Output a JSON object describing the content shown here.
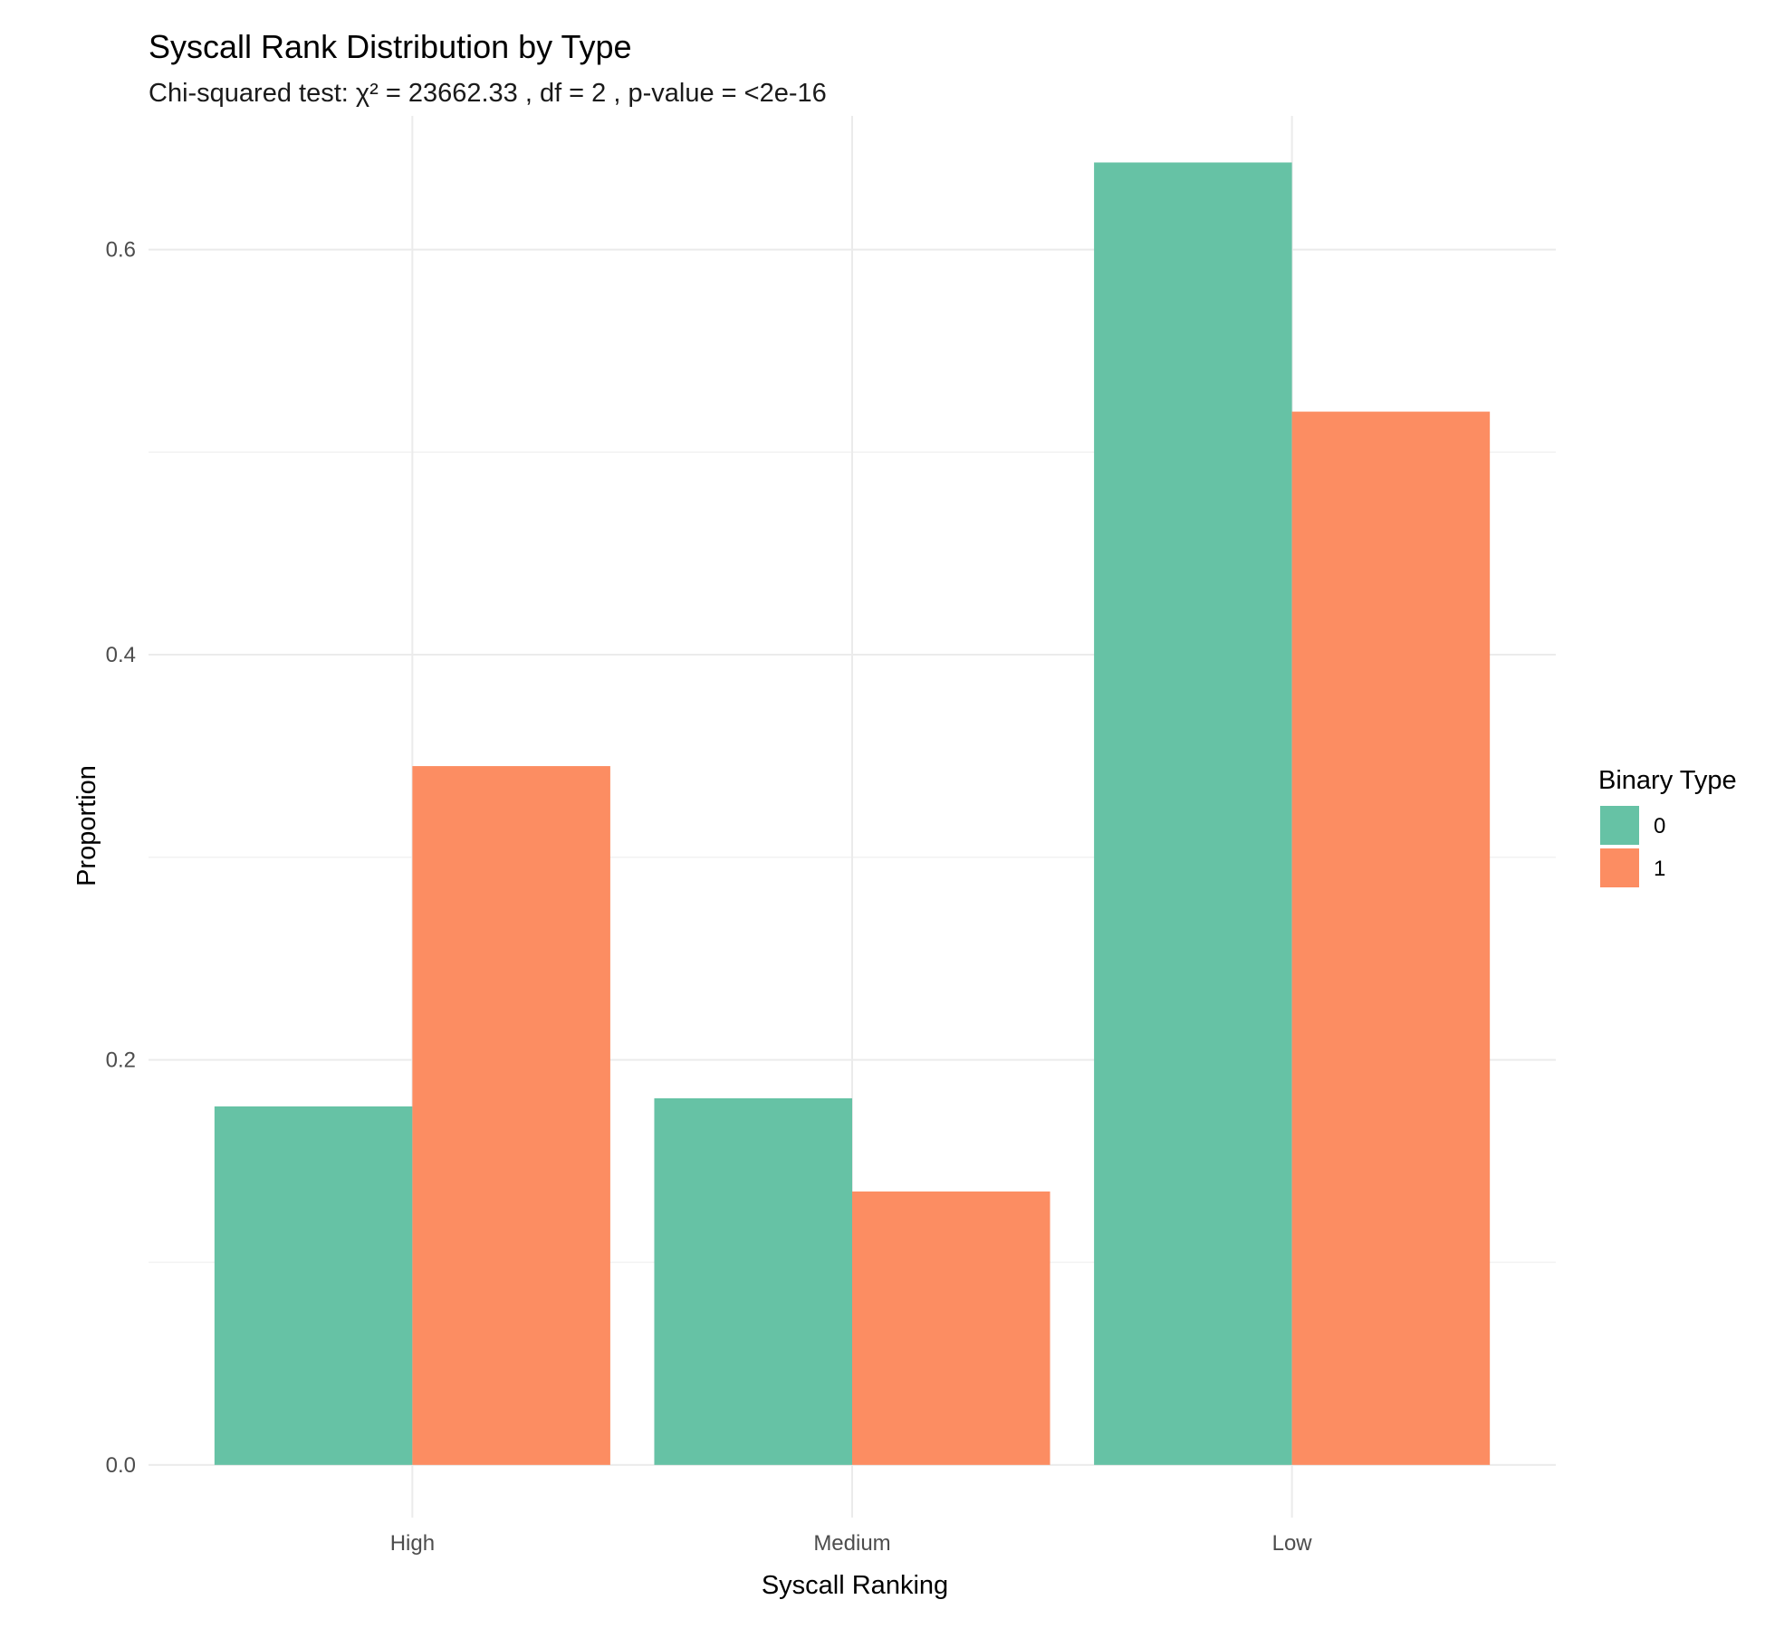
{
  "chart_data": {
    "type": "bar",
    "title": "Syscall Rank Distribution by Type",
    "subtitle": "Chi-squared test: χ² = 23662.33 , df = 2 , p-value = <2e-16",
    "xlabel": "Syscall Ranking",
    "ylabel": "Proportion",
    "categories": [
      "High",
      "Medium",
      "Low"
    ],
    "series": [
      {
        "name": "0",
        "color": "#66c2a5",
        "values": [
          0.177,
          0.181,
          0.643
        ]
      },
      {
        "name": "1",
        "color": "#fc8d62",
        "values": [
          0.345,
          0.135,
          0.52
        ]
      }
    ],
    "ylim": [
      -0.026,
      0.666
    ],
    "yticks": [
      0.0,
      0.2,
      0.4,
      0.6
    ],
    "ytick_labels": [
      "0.0",
      "0.2",
      "0.4",
      "0.6"
    ],
    "grid": true,
    "legend": {
      "title": "Binary Type",
      "position": "right"
    }
  }
}
